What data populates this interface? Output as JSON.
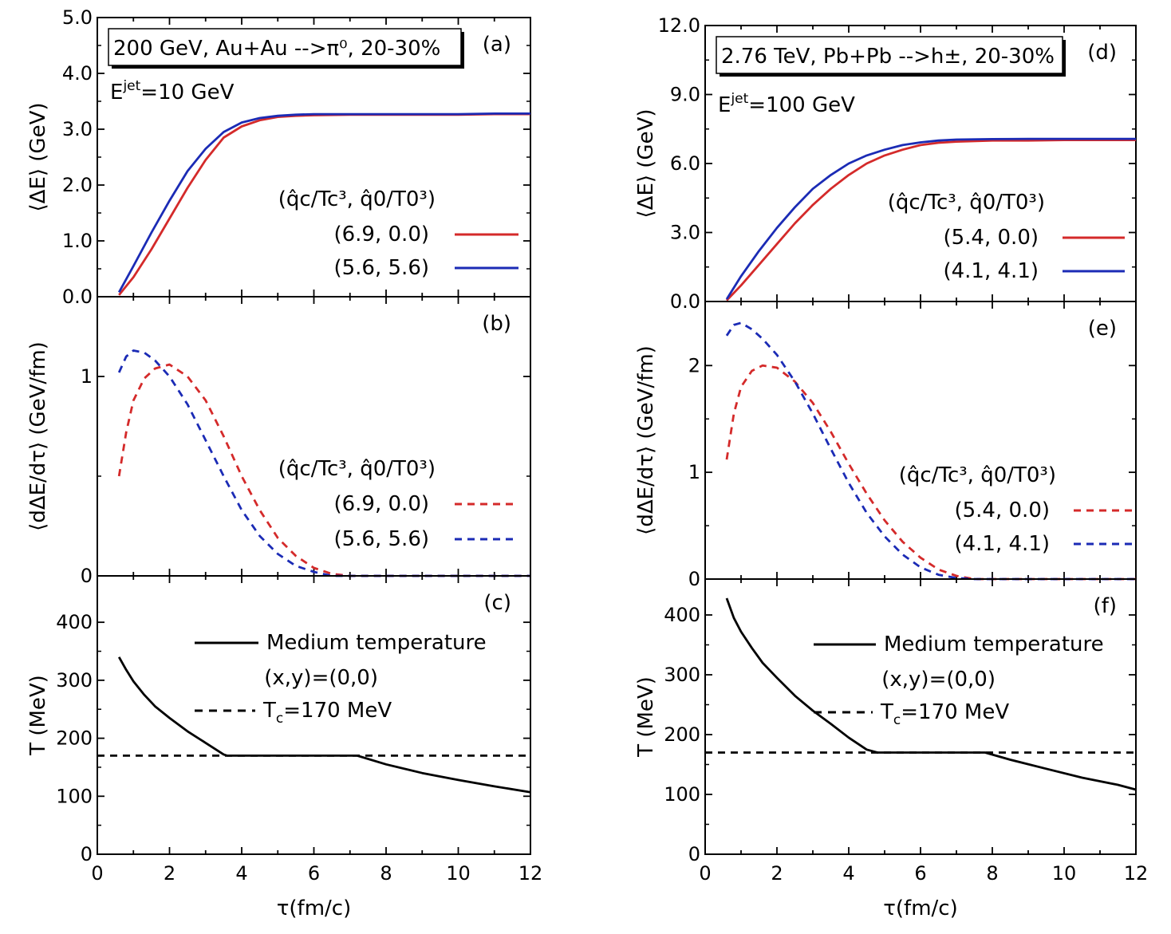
{
  "chart_data": {
    "type": "line",
    "x_axis": {
      "label": "τ(fm/c)",
      "range": [
        0,
        12
      ],
      "ticks": [
        "0",
        "2",
        "4",
        "6",
        "8",
        "10",
        "12"
      ]
    },
    "panels": [
      {
        "id": "a",
        "tag": "(a)",
        "header": "200 GeV, Au+Au -->π⁰, 20-30%",
        "info": "E^jet=10 GeV",
        "info_base": "E",
        "info_sup": "jet",
        "info_rest": "=10 GeV",
        "ylabel": "⟨ΔE⟩ (GeV)",
        "ylim": [
          0,
          5
        ],
        "yticks": [
          "0.0",
          "1.0",
          "2.0",
          "3.0",
          "4.0",
          "5.0"
        ],
        "legend_title": "(q̂c/Tc³, q̂0/T0³)",
        "series": [
          {
            "name": "(6.9, 0.0)",
            "color": "#d42a2a",
            "dash": false,
            "x": [
              0.6,
              1.0,
              1.5,
              2.0,
              2.5,
              3.0,
              3.5,
              4.0,
              4.5,
              5.0,
              5.5,
              6.0,
              7.0,
              8.0,
              9.0,
              10.0,
              11.0,
              12.0
            ],
            "y": [
              0.03,
              0.35,
              0.85,
              1.4,
              1.95,
              2.45,
              2.85,
              3.05,
              3.16,
              3.22,
              3.24,
              3.25,
              3.26,
              3.26,
              3.26,
              3.26,
              3.27,
              3.27
            ]
          },
          {
            "name": "(5.6, 5.6)",
            "color": "#1b2bb5",
            "dash": false,
            "x": [
              0.6,
              1.0,
              1.5,
              2.0,
              2.5,
              3.0,
              3.5,
              4.0,
              4.5,
              5.0,
              5.5,
              6.0,
              7.0,
              8.0,
              9.0,
              10.0,
              11.0,
              12.0
            ],
            "y": [
              0.08,
              0.55,
              1.15,
              1.72,
              2.25,
              2.65,
              2.95,
              3.12,
              3.2,
              3.24,
              3.26,
              3.27,
              3.27,
              3.27,
              3.27,
              3.27,
              3.28,
              3.28
            ]
          }
        ]
      },
      {
        "id": "b",
        "tag": "(b)",
        "ylabel": "⟨dΔE/dτ⟩ (GeV/fm)",
        "ylim": [
          0,
          1.4
        ],
        "yticks": [
          "0",
          "1"
        ],
        "ytick_values": [
          0,
          1
        ],
        "legend_title": "(q̂c/Tc³, q̂0/T0³)",
        "series": [
          {
            "name": "(6.9, 0.0)",
            "color": "#d42a2a",
            "dash": true,
            "x": [
              0.6,
              0.8,
              1.0,
              1.3,
              1.6,
              2.0,
              2.5,
              3.0,
              3.5,
              4.0,
              4.5,
              5.0,
              5.5,
              6.0,
              6.5,
              7.0,
              8.0,
              9.0,
              10.0,
              11.0,
              12.0
            ],
            "y": [
              0.5,
              0.72,
              0.88,
              0.99,
              1.04,
              1.06,
              1.0,
              0.88,
              0.7,
              0.5,
              0.33,
              0.19,
              0.1,
              0.04,
              0.01,
              0.0,
              0.0,
              0.0,
              0.0,
              0.0,
              0.0
            ]
          },
          {
            "name": "(5.6, 5.6)",
            "color": "#1b2bb5",
            "dash": true,
            "x": [
              0.6,
              0.8,
              1.0,
              1.3,
              1.6,
              2.0,
              2.5,
              3.0,
              3.5,
              4.0,
              4.5,
              5.0,
              5.5,
              6.0,
              6.5,
              7.0,
              8.0,
              9.0,
              10.0,
              11.0,
              12.0
            ],
            "y": [
              1.02,
              1.1,
              1.13,
              1.12,
              1.08,
              1.0,
              0.86,
              0.68,
              0.5,
              0.33,
              0.2,
              0.11,
              0.05,
              0.02,
              0.0,
              0.0,
              0.0,
              0.0,
              0.0,
              0.0,
              0.0
            ]
          }
        ]
      },
      {
        "id": "c",
        "tag": "(c)",
        "ylabel": "T (MeV)",
        "ylim": [
          0,
          480
        ],
        "yticks": [
          "0",
          "100",
          "200",
          "300",
          "400"
        ],
        "ytick_values": [
          0,
          100,
          200,
          300,
          400
        ],
        "legend": {
          "medium": "Medium temperature",
          "point": "(x,y)=(0,0)",
          "tc_base": "T",
          "tc_sub": "c",
          "tc_rest": "=170 MeV"
        },
        "series": [
          {
            "name": "Medium temperature",
            "color": "#000000",
            "dash": false,
            "x": [
              0.6,
              0.8,
              1.0,
              1.3,
              1.6,
              2.0,
              2.5,
              3.0,
              3.5,
              3.6,
              5.0,
              7.2,
              8.0,
              9.0,
              10.0,
              11.0,
              12.0
            ],
            "y": [
              340,
              318,
              298,
              275,
              255,
              235,
              212,
              192,
              172,
              170,
              170,
              170,
              155,
              140,
              128,
              117,
              107
            ]
          },
          {
            "name": "Tc=170 MeV",
            "color": "#000000",
            "dash": true,
            "x": [
              0,
              12
            ],
            "y": [
              170,
              170
            ]
          }
        ]
      },
      {
        "id": "d",
        "tag": "(d)",
        "header": "2.76 TeV, Pb+Pb -->h±, 20-30%",
        "info_base": "E",
        "info_sup": "jet",
        "info_rest": "=100 GeV",
        "ylabel": "⟨ΔE⟩ (GeV)",
        "ylim": [
          0,
          12
        ],
        "yticks": [
          "0.0",
          "3.0",
          "6.0",
          "9.0",
          "12.0"
        ],
        "legend_title": "(q̂c/Tc³, q̂0/T0³)",
        "series": [
          {
            "name": "(5.4, 0.0)",
            "color": "#d42a2a",
            "dash": false,
            "x": [
              0.6,
              1.0,
              1.5,
              2.0,
              2.5,
              3.0,
              3.5,
              4.0,
              4.5,
              5.0,
              5.5,
              6.0,
              6.5,
              7.0,
              8.0,
              9.0,
              10.0,
              11.0,
              12.0
            ],
            "y": [
              0.05,
              0.7,
              1.6,
              2.5,
              3.4,
              4.2,
              4.9,
              5.5,
              6.0,
              6.35,
              6.6,
              6.8,
              6.9,
              6.95,
              7.0,
              7.0,
              7.02,
              7.02,
              7.02
            ]
          },
          {
            "name": "(4.1, 4.1)",
            "color": "#1b2bb5",
            "dash": false,
            "x": [
              0.6,
              1.0,
              1.5,
              2.0,
              2.5,
              3.0,
              3.5,
              4.0,
              4.5,
              5.0,
              5.5,
              6.0,
              6.5,
              7.0,
              8.0,
              9.0,
              10.0,
              11.0,
              12.0
            ],
            "y": [
              0.1,
              1.1,
              2.2,
              3.2,
              4.1,
              4.9,
              5.5,
              6.0,
              6.35,
              6.6,
              6.8,
              6.92,
              7.0,
              7.04,
              7.06,
              7.07,
              7.07,
              7.07,
              7.07
            ]
          }
        ]
      },
      {
        "id": "e",
        "tag": "(e)",
        "ylabel": "⟨dΔE/dτ⟩ (GeV/fm)",
        "ylim": [
          0,
          2.6
        ],
        "yticks": [
          "0",
          "1",
          "2"
        ],
        "ytick_values": [
          0,
          1,
          2
        ],
        "legend_title": "(q̂c/Tc³, q̂0/T0³)",
        "series": [
          {
            "name": "(5.4, 0.0)",
            "color": "#d42a2a",
            "dash": true,
            "x": [
              0.6,
              0.8,
              1.0,
              1.3,
              1.6,
              2.0,
              2.5,
              3.0,
              3.5,
              4.0,
              4.5,
              5.0,
              5.5,
              6.0,
              6.5,
              7.0,
              7.5,
              8.0,
              9.0,
              10.0,
              11.0,
              12.0
            ],
            "y": [
              1.12,
              1.55,
              1.8,
              1.95,
              2.0,
              1.98,
              1.85,
              1.65,
              1.38,
              1.08,
              0.8,
              0.55,
              0.35,
              0.2,
              0.09,
              0.03,
              0.0,
              0.0,
              0.0,
              0.0,
              0.0,
              0.0
            ]
          },
          {
            "name": "(4.1, 4.1)",
            "color": "#1b2bb5",
            "dash": true,
            "x": [
              0.6,
              0.8,
              1.0,
              1.3,
              1.6,
              2.0,
              2.5,
              3.0,
              3.5,
              4.0,
              4.5,
              5.0,
              5.5,
              6.0,
              6.5,
              7.0,
              7.5,
              8.0,
              9.0,
              10.0,
              11.0,
              12.0
            ],
            "y": [
              2.28,
              2.38,
              2.4,
              2.34,
              2.25,
              2.1,
              1.85,
              1.55,
              1.22,
              0.9,
              0.62,
              0.4,
              0.23,
              0.11,
              0.04,
              0.01,
              0.0,
              0.0,
              0.0,
              0.0,
              0.0,
              0.0
            ]
          }
        ]
      },
      {
        "id": "f",
        "tag": "(f)",
        "ylabel": "T (MeV)",
        "ylim": [
          0,
          460
        ],
        "yticks": [
          "0",
          "100",
          "200",
          "300",
          "400"
        ],
        "ytick_values": [
          0,
          100,
          200,
          300,
          400
        ],
        "legend": {
          "medium": "Medium temperature",
          "point": "(x,y)=(0,0)",
          "tc_base": "T",
          "tc_sub": "c",
          "tc_rest": "=170 MeV"
        },
        "series": [
          {
            "name": "Medium temperature",
            "color": "#000000",
            "dash": false,
            "x": [
              0.6,
              0.8,
              1.0,
              1.3,
              1.6,
              2.0,
              2.5,
              3.0,
              3.5,
              4.0,
              4.5,
              4.8,
              6.0,
              7.8,
              8.5,
              9.5,
              10.5,
              11.5,
              12.0
            ],
            "y": [
              428,
              395,
              372,
              345,
              320,
              295,
              265,
              240,
              218,
              195,
              175,
              170,
              170,
              170,
              158,
              143,
              128,
              116,
              108
            ]
          },
          {
            "name": "Tc=170 MeV",
            "color": "#000000",
            "dash": true,
            "x": [
              0,
              12
            ],
            "y": [
              170,
              170
            ]
          }
        ]
      }
    ]
  }
}
